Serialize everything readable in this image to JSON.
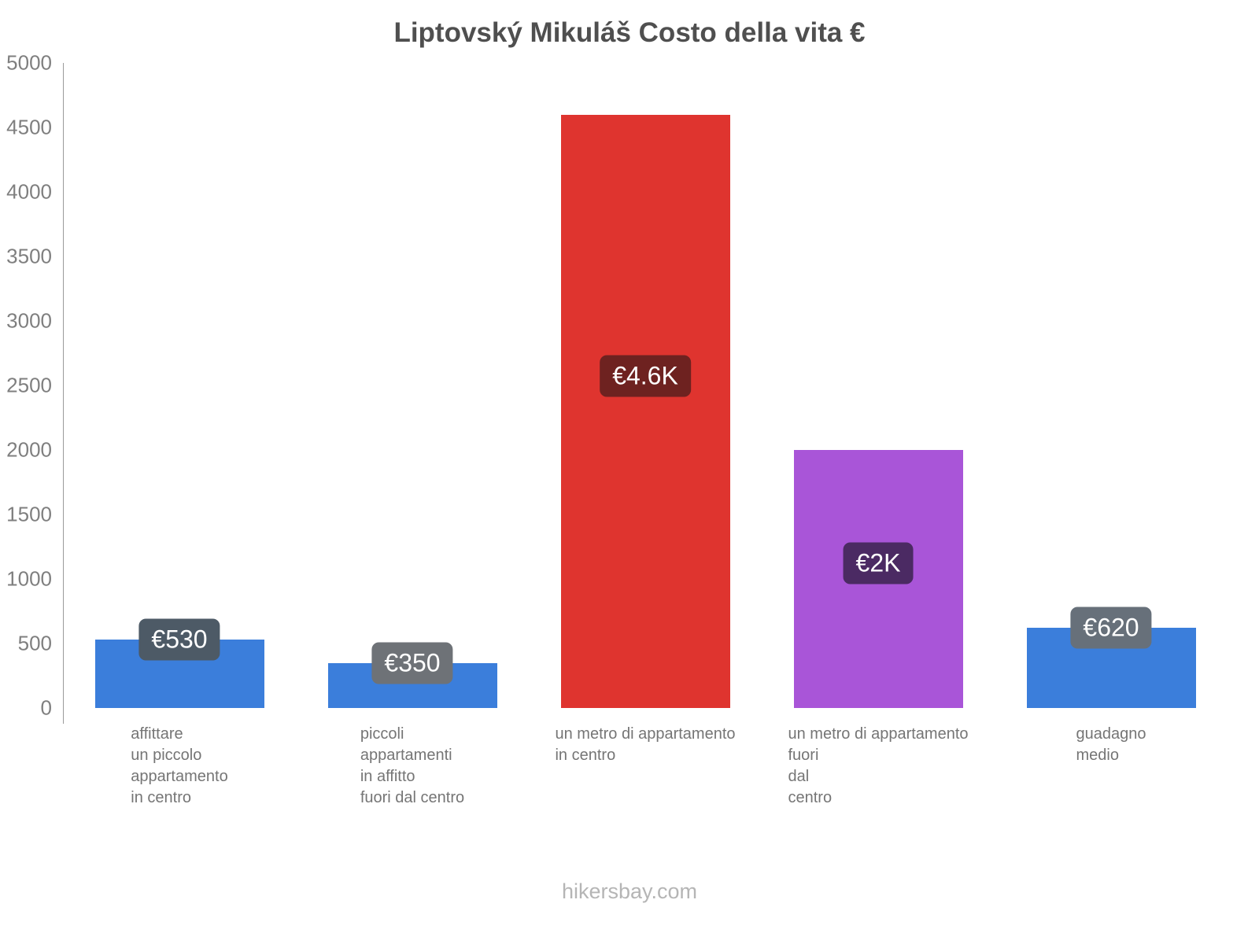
{
  "title": "Liptovský Mikuláš Costo della vita €",
  "footer": "hikersbay.com",
  "chart_data": {
    "type": "bar",
    "title": "Liptovský Mikuláš Costo della vita €",
    "xlabel": "",
    "ylabel": "",
    "ylim": [
      0,
      5000
    ],
    "ytick_step": 500,
    "grid": false,
    "legend": false,
    "categories": [
      "affittare un piccolo appartamento in centro",
      "piccoli appartamenti in affitto fuori dal centro",
      "un metro di appartamento in centro",
      "un metro di appartamento fuori dal centro",
      "guadagno medio"
    ],
    "category_lines": [
      [
        "affittare",
        "un piccolo",
        "appartamento",
        "in centro"
      ],
      [
        "piccoli",
        "appartamenti",
        "in affitto",
        "fuori dal centro"
      ],
      [
        "un metro di appartamento",
        "in centro"
      ],
      [
        "un metro di appartamento",
        "fuori",
        "dal",
        "centro"
      ],
      [
        "guadagno",
        "medio"
      ]
    ],
    "values": [
      530,
      350,
      4600,
      2000,
      620
    ],
    "value_labels": [
      "€530",
      "€350",
      "€4.6K",
      "€2K",
      "€620"
    ],
    "bar_colors": [
      "#3b7edb",
      "#3b7edb",
      "#df342f",
      "#a955d8",
      "#3b7edb"
    ],
    "label_colors": [
      "#4d5a66",
      "#6e7277",
      "#6e2220",
      "#4b2a63",
      "#67707a"
    ],
    "currency": "€"
  }
}
